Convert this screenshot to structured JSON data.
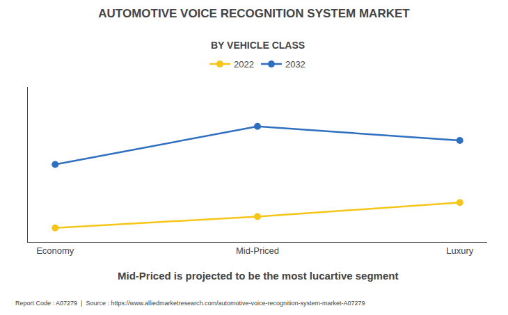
{
  "chart_data": {
    "type": "line",
    "title": "AUTOMOTIVE VOICE RECOGNITION SYSTEM MARKET",
    "subtitle": "BY VEHICLE CLASS",
    "categories": [
      "Economy",
      "Mid-Priced",
      "Luxury"
    ],
    "series": [
      {
        "name": "2022",
        "color": "#F5C518",
        "values": [
          1.0,
          1.8,
          2.8
        ],
        "marker": "circle",
        "line_style": "solid"
      },
      {
        "name": "2032",
        "color": "#2E6FBF",
        "values": [
          5.5,
          8.2,
          7.2
        ],
        "marker": "circle",
        "line_style": "solid"
      }
    ],
    "ylim": [
      0,
      11
    ],
    "grid": false,
    "legend": "top",
    "tick_labels": "x",
    "annotations": [
      "Mid-Priced is projected to be the most lucartive segment",
      "Report Code : A07279  |  Source : https://www.alliedmarketresearch.com/automotive-voice-recognition-system-market-A07279"
    ]
  }
}
